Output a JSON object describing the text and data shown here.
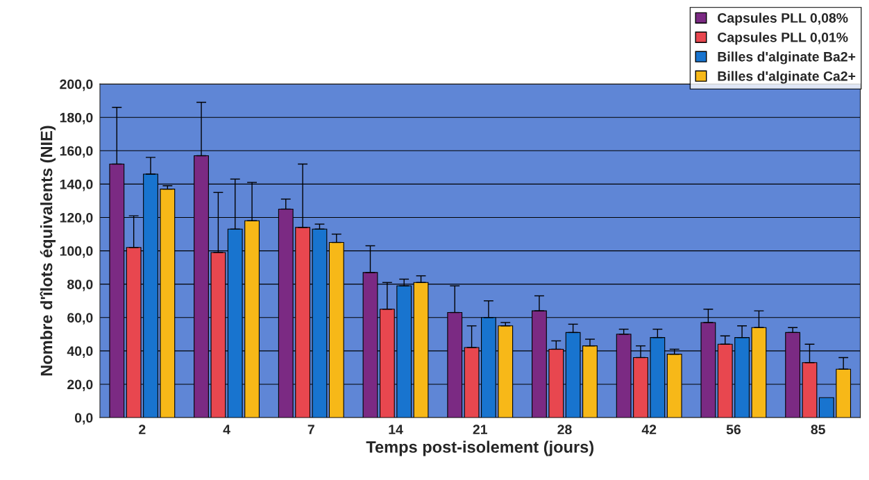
{
  "chart_data": {
    "type": "bar",
    "xlabel": "Temps post-isolement (jours)",
    "ylabel": "Nombre d'îlots équivalents (NIE)",
    "categories": [
      "2",
      "4",
      "7",
      "14",
      "21",
      "28",
      "42",
      "56",
      "85"
    ],
    "series": [
      {
        "name": "Capsules PLL 0,08%",
        "color": "#7b2a83",
        "values": [
          152,
          157,
          125,
          87,
          63,
          64,
          50,
          57,
          51
        ],
        "errors": [
          [
            152,
            186
          ],
          [
            157,
            189
          ],
          [
            125,
            131
          ],
          [
            87,
            103
          ],
          [
            63,
            79
          ],
          [
            64,
            73
          ],
          [
            50,
            53
          ],
          [
            57,
            65
          ],
          [
            51,
            54
          ]
        ]
      },
      {
        "name": "Capsules PLL 0,01%",
        "color": "#e8474f",
        "values": [
          102,
          99,
          114,
          65,
          42,
          41,
          36,
          44,
          33
        ],
        "errors": [
          [
            102,
            121
          ],
          [
            99,
            135
          ],
          [
            114,
            152
          ],
          [
            65,
            81
          ],
          [
            42,
            55
          ],
          [
            41,
            46
          ],
          [
            36,
            43
          ],
          [
            44,
            49
          ],
          [
            33,
            44
          ]
        ]
      },
      {
        "name": "Billes d'alginate Ba2+",
        "color": "#1874cf",
        "values": [
          146,
          113,
          113,
          79,
          60,
          51,
          48,
          48,
          12
        ],
        "errors": [
          [
            146,
            156
          ],
          [
            113,
            143
          ],
          [
            113,
            116
          ],
          [
            79,
            83
          ],
          [
            60,
            70
          ],
          [
            51,
            56
          ],
          [
            48,
            53
          ],
          [
            48,
            55
          ],
          null
        ]
      },
      {
        "name": "Billes d'alginate Ca2+",
        "color": "#f7b818",
        "values": [
          137,
          118,
          105,
          81,
          55,
          43,
          38,
          54,
          29
        ],
        "errors": [
          [
            137,
            139
          ],
          [
            118,
            141
          ],
          [
            105,
            110
          ],
          [
            81,
            85
          ],
          [
            55,
            57
          ],
          [
            43,
            47
          ],
          [
            38,
            41
          ],
          [
            54,
            64
          ],
          [
            29,
            36
          ]
        ]
      }
    ],
    "ylim": [
      0,
      200
    ],
    "yticks": [
      {
        "value": 0,
        "label": "0,0"
      },
      {
        "value": 20,
        "label": "20,0"
      },
      {
        "value": 40,
        "label": "40,0"
      },
      {
        "value": 60,
        "label": "60,0"
      },
      {
        "value": 80,
        "label": "80,0"
      },
      {
        "value": 100,
        "label": "100,0"
      },
      {
        "value": 120,
        "label": "120,0"
      },
      {
        "value": 140,
        "label": "140,0"
      },
      {
        "value": 160,
        "label": "160,0"
      },
      {
        "value": 180,
        "label": "180,0"
      },
      {
        "value": 200,
        "label": "200,0"
      }
    ],
    "grid": "y",
    "legend": "top right"
  }
}
